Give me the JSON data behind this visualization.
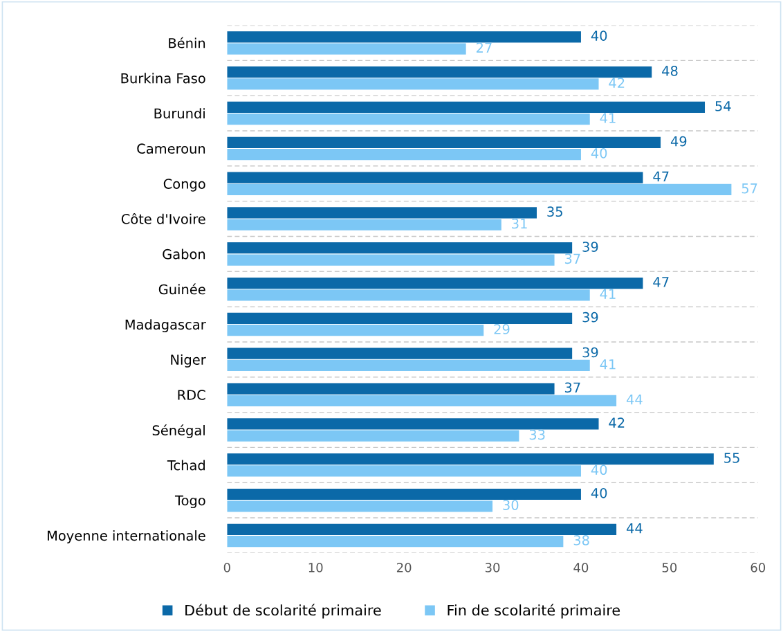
{
  "chart_data": {
    "type": "bar",
    "orientation": "horizontal",
    "categories": [
      "Bénin",
      "Burkina Faso",
      "Burundi",
      "Cameroun",
      "Congo",
      "Côte d'Ivoire",
      "Gabon",
      "Guinée",
      "Madagascar",
      "Niger",
      "RDC",
      "Sénégal",
      "Tchad",
      "Togo",
      "Moyenne internationale"
    ],
    "series": [
      {
        "name": "Début de scolarité primaire",
        "color": "#0b69a8",
        "values": [
          40,
          48,
          54,
          49,
          47,
          35,
          39,
          47,
          39,
          39,
          37,
          42,
          55,
          40,
          44
        ]
      },
      {
        "name": "Fin de scolarité primaire",
        "color": "#7cc7f5",
        "values": [
          27,
          42,
          41,
          40,
          57,
          31,
          37,
          41,
          29,
          41,
          44,
          33,
          40,
          30,
          38
        ]
      }
    ],
    "xlim": [
      0,
      60
    ],
    "xticks": [
      0,
      10,
      20,
      30,
      40,
      50,
      60
    ],
    "data_labels": true,
    "grid": "y",
    "legend": "bottom"
  }
}
